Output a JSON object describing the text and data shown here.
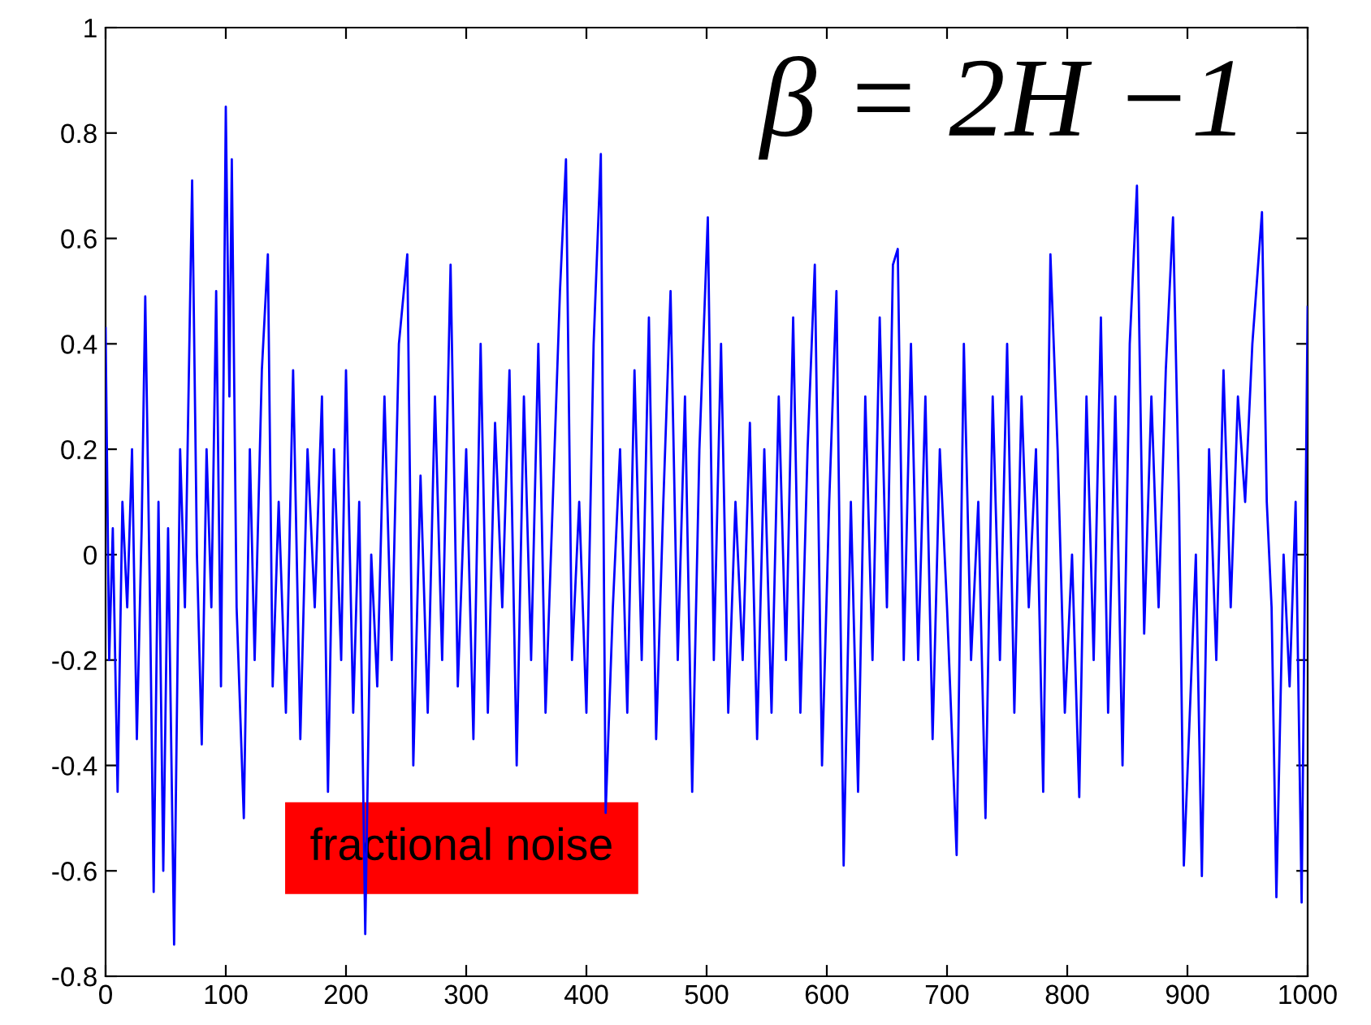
{
  "chart_data": {
    "type": "line",
    "x": [
      0,
      3,
      6,
      10,
      14,
      18,
      22,
      26,
      30,
      33,
      37,
      40,
      44,
      48,
      52,
      57,
      62,
      66,
      72,
      76,
      80,
      84,
      88,
      92,
      96,
      100,
      103,
      105,
      109,
      115,
      120,
      124,
      130,
      135,
      139,
      144,
      150,
      156,
      162,
      168,
      174,
      180,
      185,
      190,
      196,
      200,
      206,
      211,
      216,
      221,
      226,
      232,
      238,
      244,
      251,
      256,
      262,
      268,
      274,
      280,
      287,
      293,
      300,
      306,
      312,
      318,
      324,
      330,
      336,
      342,
      348,
      354,
      360,
      366,
      372,
      378,
      383,
      388,
      394,
      400,
      406,
      412,
      416,
      422,
      428,
      434,
      440,
      446,
      452,
      458,
      464,
      470,
      476,
      482,
      488,
      494,
      501,
      506,
      512,
      518,
      524,
      530,
      536,
      542,
      548,
      554,
      560,
      566,
      572,
      578,
      584,
      590,
      596,
      602,
      608,
      614,
      620,
      626,
      632,
      638,
      644,
      650,
      655,
      659,
      664,
      670,
      676,
      682,
      688,
      694,
      700,
      708,
      714,
      720,
      726,
      732,
      738,
      744,
      750,
      756,
      762,
      768,
      774,
      780,
      786,
      792,
      798,
      804,
      810,
      816,
      822,
      828,
      834,
      840,
      846,
      852,
      858,
      864,
      870,
      876,
      882,
      888,
      893,
      897,
      902,
      907,
      912,
      918,
      924,
      930,
      936,
      942,
      948,
      954,
      962,
      966,
      970,
      974,
      980,
      985,
      990,
      995,
      1000
    ],
    "series": [
      {
        "color": "#0000ff",
        "values": [
          0.43,
          -0.2,
          0.05,
          -0.45,
          0.1,
          -0.1,
          0.2,
          -0.35,
          0.05,
          0.49,
          -0.1,
          -0.64,
          0.1,
          -0.6,
          0.05,
          -0.74,
          0.2,
          -0.1,
          0.71,
          0.0,
          -0.36,
          0.2,
          -0.1,
          0.5,
          -0.25,
          0.85,
          0.3,
          0.75,
          -0.1,
          -0.5,
          0.2,
          -0.2,
          0.35,
          0.57,
          -0.25,
          0.1,
          -0.3,
          0.35,
          -0.35,
          0.2,
          -0.1,
          0.3,
          -0.45,
          0.2,
          -0.2,
          0.35,
          -0.3,
          0.1,
          -0.72,
          0.0,
          -0.25,
          0.3,
          -0.2,
          0.4,
          0.57,
          -0.4,
          0.15,
          -0.3,
          0.3,
          -0.2,
          0.55,
          -0.25,
          0.2,
          -0.35,
          0.4,
          -0.3,
          0.25,
          -0.1,
          0.35,
          -0.4,
          0.3,
          -0.2,
          0.4,
          -0.3,
          0.1,
          0.5,
          0.75,
          -0.2,
          0.1,
          -0.3,
          0.4,
          0.76,
          -0.49,
          -0.1,
          0.2,
          -0.3,
          0.35,
          -0.2,
          0.45,
          -0.35,
          0.1,
          0.5,
          -0.2,
          0.3,
          -0.45,
          0.2,
          0.64,
          -0.2,
          0.4,
          -0.3,
          0.1,
          -0.2,
          0.25,
          -0.35,
          0.2,
          -0.3,
          0.3,
          -0.2,
          0.45,
          -0.3,
          0.2,
          0.55,
          -0.4,
          0.1,
          0.5,
          -0.59,
          0.1,
          -0.45,
          0.3,
          -0.2,
          0.45,
          -0.1,
          0.55,
          0.58,
          -0.2,
          0.4,
          -0.2,
          0.3,
          -0.35,
          0.2,
          -0.1,
          -0.57,
          0.4,
          -0.2,
          0.1,
          -0.5,
          0.3,
          -0.2,
          0.4,
          -0.3,
          0.3,
          -0.1,
          0.2,
          -0.45,
          0.57,
          0.2,
          -0.3,
          0.0,
          -0.46,
          0.3,
          -0.2,
          0.45,
          -0.3,
          0.3,
          -0.4,
          0.4,
          0.7,
          -0.15,
          0.3,
          -0.1,
          0.35,
          0.64,
          0.1,
          -0.59,
          -0.3,
          0.0,
          -0.61,
          0.2,
          -0.2,
          0.35,
          -0.1,
          0.3,
          0.1,
          0.4,
          0.65,
          0.1,
          -0.1,
          -0.65,
          0.0,
          -0.25,
          0.1,
          -0.66,
          0.47
        ]
      }
    ],
    "xlim": [
      0,
      1000
    ],
    "xticks": [
      0,
      100,
      200,
      300,
      400,
      500,
      600,
      700,
      800,
      900,
      1000
    ],
    "ylim": [
      -0.8,
      1
    ],
    "yticks": [
      -0.8,
      -0.6,
      -0.4,
      -0.2,
      0,
      0.2,
      0.4,
      0.6,
      0.8,
      1
    ],
    "marker": "none",
    "line_style": "solid",
    "grid": false,
    "legend": false,
    "annotations": [
      "β = 2H −1",
      "fractional noise"
    ]
  }
}
